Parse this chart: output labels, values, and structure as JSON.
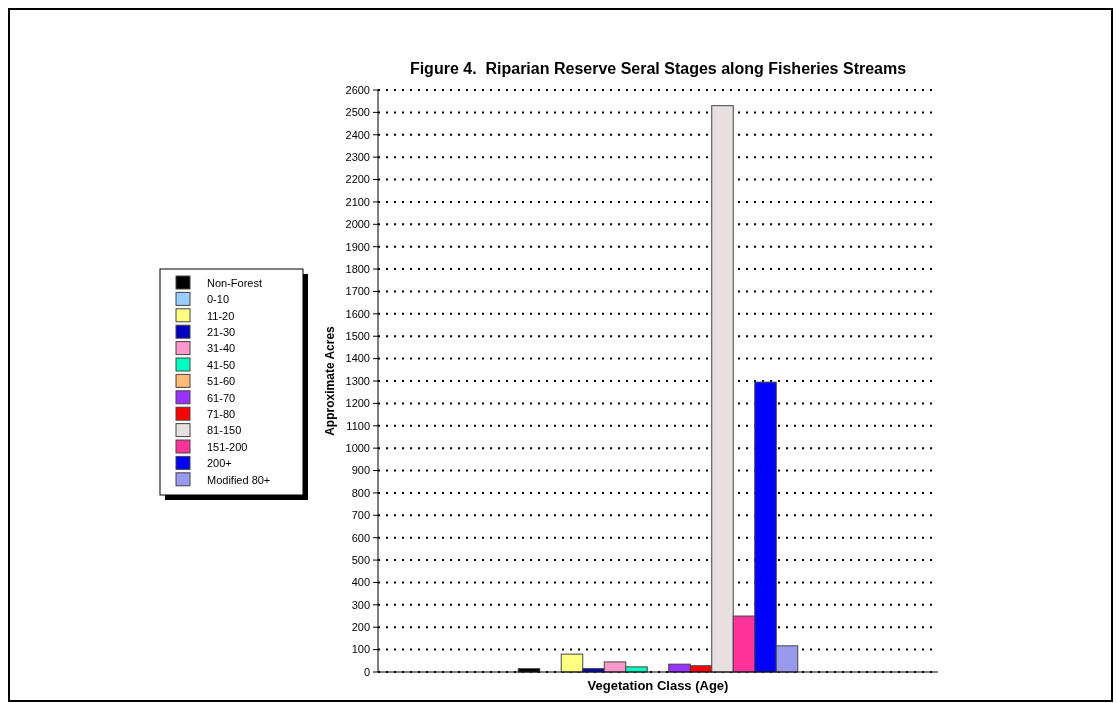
{
  "chart_data": {
    "type": "bar",
    "title": "Figure 4.  Riparian Reserve Seral Stages along Fisheries Streams",
    "xlabel": "Vegetation Class (Age)",
    "ylabel": "Approximate Acres",
    "categories": [
      null
    ],
    "series": [
      {
        "name": "Non-Forest",
        "color": "#000000",
        "values": [
          15
        ]
      },
      {
        "name": "0-10",
        "color": "#99ccff",
        "values": [
          null
        ]
      },
      {
        "name": "11-20",
        "color": "#ffff80",
        "values": [
          80
        ]
      },
      {
        "name": "21-30",
        "color": "#0000c0",
        "values": [
          15
        ]
      },
      {
        "name": "31-40",
        "color": "#ff99cc",
        "values": [
          45
        ]
      },
      {
        "name": "41-50",
        "color": "#00ffc0",
        "values": [
          23
        ]
      },
      {
        "name": "51-60",
        "color": "#ffbb77",
        "values": [
          null
        ]
      },
      {
        "name": "61-70",
        "color": "#9933ff",
        "values": [
          35
        ]
      },
      {
        "name": "71-80",
        "color": "#ff0000",
        "values": [
          28
        ]
      },
      {
        "name": "81-150",
        "color": "#e8e0e0",
        "values": [
          2530
        ]
      },
      {
        "name": "151-200",
        "color": "#ff3399",
        "values": [
          250
        ]
      },
      {
        "name": "200+",
        "color": "#0000ff",
        "values": [
          1295
        ]
      },
      {
        "name": "Modified 80+",
        "color": "#9999ee",
        "values": [
          117
        ]
      }
    ],
    "ylim": [
      0,
      2600
    ],
    "yticks": [
      0,
      100,
      200,
      300,
      400,
      500,
      600,
      700,
      800,
      900,
      1000,
      1100,
      1200,
      1300,
      1400,
      1500,
      1600,
      1700,
      1800,
      1900,
      2000,
      2100,
      2200,
      2300,
      2400,
      2500,
      2600
    ],
    "grid": "y",
    "legend": "left"
  }
}
